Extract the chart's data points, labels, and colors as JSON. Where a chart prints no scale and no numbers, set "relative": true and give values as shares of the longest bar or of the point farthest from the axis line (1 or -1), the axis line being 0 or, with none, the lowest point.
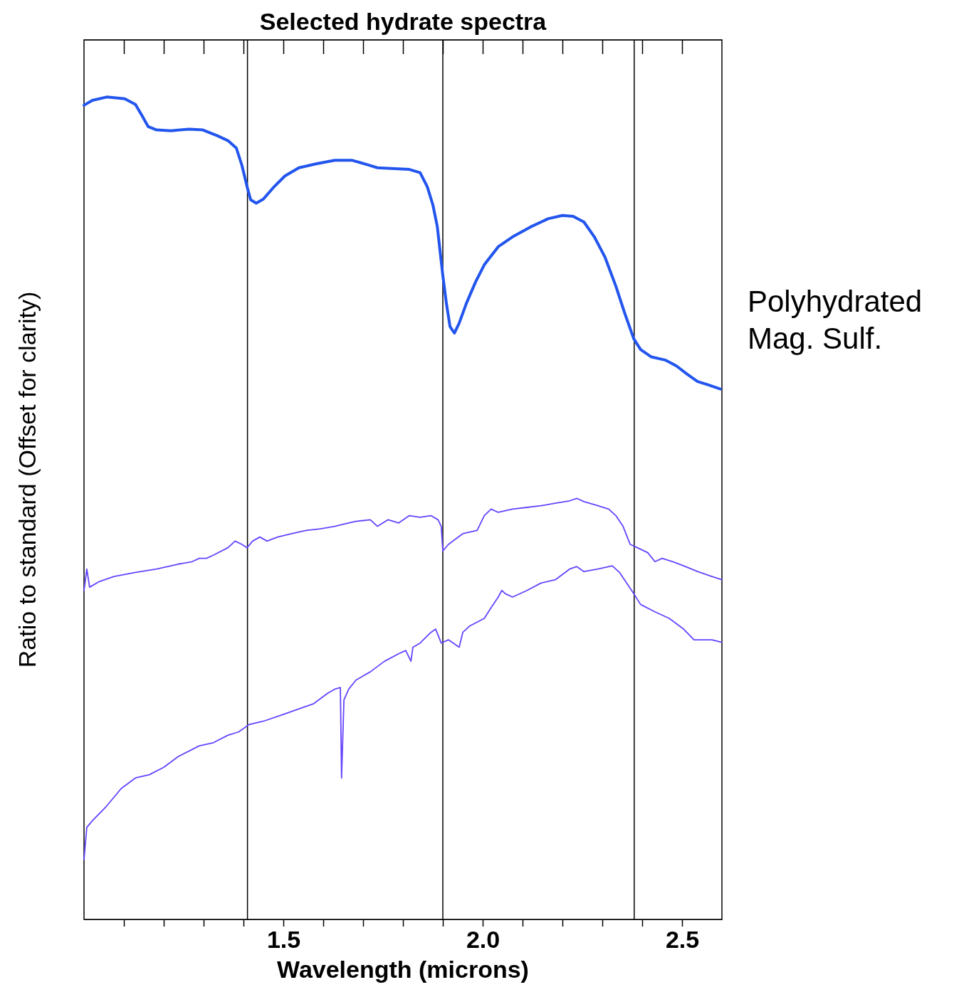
{
  "chart_data": {
    "type": "line",
    "title": "Selected hydrate spectra",
    "xlabel": "Wavelength (microns)",
    "ylabel": "Ratio to standard (Offset for clarity)",
    "relative": true,
    "xlim": [
      1.0,
      2.6
    ],
    "xticks": [
      {
        "value": 1.1,
        "label": null
      },
      {
        "value": 1.2,
        "label": null
      },
      {
        "value": 1.3,
        "label": null
      },
      {
        "value": 1.4,
        "label": null
      },
      {
        "value": 1.5,
        "label": "1.5"
      },
      {
        "value": 1.6,
        "label": null
      },
      {
        "value": 1.7,
        "label": null
      },
      {
        "value": 1.8,
        "label": null
      },
      {
        "value": 1.9,
        "label": null
      },
      {
        "value": 2.0,
        "label": "2.0"
      },
      {
        "value": 2.1,
        "label": null
      },
      {
        "value": 2.2,
        "label": null
      },
      {
        "value": 2.3,
        "label": null
      },
      {
        "value": 2.4,
        "label": null
      },
      {
        "value": 2.5,
        "label": "2.5"
      }
    ],
    "tick_labels": "x",
    "line_style": "solid",
    "annotations": [
      "Polyhydrated Mag. Sulf."
    ],
    "ref_lines": [
      {
        "axis": "x",
        "value": 1.41,
        "label": null,
        "color": "#000000"
      },
      {
        "axis": "x",
        "value": 1.9,
        "label": null,
        "color": "#000000"
      },
      {
        "axis": "x",
        "value": 2.38,
        "label": null,
        "color": "#000000"
      }
    ],
    "series": [
      {
        "color": "#2255ee",
        "x": [
          1.0,
          1.021,
          1.057,
          1.102,
          1.129,
          1.146,
          1.161,
          1.182,
          1.218,
          1.263,
          1.298,
          1.334,
          1.361,
          1.382,
          1.396,
          1.409,
          1.418,
          1.432,
          1.45,
          1.477,
          1.504,
          1.539,
          1.584,
          1.629,
          1.673,
          1.709,
          1.736,
          1.78,
          1.816,
          1.843,
          1.861,
          1.875,
          1.886,
          1.893,
          1.9,
          1.909,
          1.918,
          1.929,
          1.941,
          1.959,
          1.982,
          2.004,
          2.039,
          2.075,
          2.12,
          2.164,
          2.2,
          2.227,
          2.254,
          2.28,
          2.307,
          2.334,
          2.357,
          2.379,
          2.396,
          2.423,
          2.459,
          2.486,
          2.513,
          2.539,
          2.566,
          2.596
        ],
        "values": [
          0.99,
          0.996,
          1.0,
          0.998,
          0.991,
          0.977,
          0.964,
          0.96,
          0.959,
          0.961,
          0.96,
          0.953,
          0.947,
          0.938,
          0.917,
          0.891,
          0.875,
          0.871,
          0.876,
          0.891,
          0.904,
          0.914,
          0.919,
          0.923,
          0.923,
          0.918,
          0.914,
          0.913,
          0.912,
          0.908,
          0.891,
          0.869,
          0.843,
          0.813,
          0.783,
          0.749,
          0.721,
          0.713,
          0.725,
          0.749,
          0.775,
          0.796,
          0.818,
          0.83,
          0.842,
          0.852,
          0.856,
          0.855,
          0.848,
          0.83,
          0.805,
          0.77,
          0.736,
          0.706,
          0.693,
          0.684,
          0.68,
          0.673,
          0.663,
          0.654,
          0.65,
          0.645
        ]
      },
      {
        "color": "#6644ff",
        "x": [
          1.0,
          1.007,
          1.014,
          1.039,
          1.075,
          1.129,
          1.182,
          1.236,
          1.271,
          1.289,
          1.307,
          1.325,
          1.361,
          1.379,
          1.396,
          1.409,
          1.423,
          1.441,
          1.459,
          1.486,
          1.521,
          1.557,
          1.593,
          1.629,
          1.664,
          1.682,
          1.718,
          1.736,
          1.763,
          1.789,
          1.816,
          1.843,
          1.87,
          1.888,
          1.896,
          1.9,
          1.914,
          1.95,
          1.986,
          2.004,
          2.021,
          2.039,
          2.075,
          2.111,
          2.146,
          2.182,
          2.218,
          2.236,
          2.254,
          2.289,
          2.316,
          2.334,
          2.352,
          2.37,
          2.388,
          2.414,
          2.432,
          2.45,
          2.477,
          2.504,
          2.539,
          2.575,
          2.6
        ],
        "values": [
          0.4,
          0.426,
          0.404,
          0.411,
          0.417,
          0.422,
          0.426,
          0.432,
          0.435,
          0.439,
          0.439,
          0.443,
          0.452,
          0.46,
          0.456,
          0.452,
          0.46,
          0.465,
          0.46,
          0.465,
          0.469,
          0.473,
          0.475,
          0.478,
          0.482,
          0.484,
          0.486,
          0.478,
          0.486,
          0.482,
          0.491,
          0.489,
          0.491,
          0.486,
          0.478,
          0.448,
          0.456,
          0.469,
          0.473,
          0.491,
          0.499,
          0.495,
          0.499,
          0.501,
          0.503,
          0.506,
          0.509,
          0.512,
          0.508,
          0.503,
          0.499,
          0.491,
          0.478,
          0.456,
          0.452,
          0.446,
          0.435,
          0.439,
          0.435,
          0.43,
          0.423,
          0.417,
          0.413
        ]
      },
      {
        "color": "#6644ff",
        "x": [
          1.0,
          1.007,
          1.021,
          1.057,
          1.093,
          1.129,
          1.164,
          1.2,
          1.236,
          1.289,
          1.325,
          1.361,
          1.388,
          1.414,
          1.45,
          1.504,
          1.539,
          1.575,
          1.611,
          1.629,
          1.643,
          1.646,
          1.652,
          1.664,
          1.682,
          1.718,
          1.754,
          1.789,
          1.807,
          1.82,
          1.825,
          1.843,
          1.87,
          1.882,
          1.896,
          1.914,
          1.941,
          1.95,
          1.968,
          2.004,
          2.021,
          2.039,
          2.048,
          2.057,
          2.075,
          2.111,
          2.146,
          2.182,
          2.218,
          2.236,
          2.254,
          2.289,
          2.325,
          2.343,
          2.361,
          2.379,
          2.396,
          2.432,
          2.468,
          2.504,
          2.53,
          2.575,
          2.6
        ],
        "values": [
          0.073,
          0.112,
          0.12,
          0.138,
          0.159,
          0.172,
          0.176,
          0.185,
          0.198,
          0.211,
          0.215,
          0.224,
          0.228,
          0.237,
          0.241,
          0.25,
          0.256,
          0.262,
          0.275,
          0.28,
          0.282,
          0.172,
          0.267,
          0.28,
          0.291,
          0.301,
          0.314,
          0.323,
          0.327,
          0.314,
          0.331,
          0.336,
          0.349,
          0.353,
          0.336,
          0.34,
          0.331,
          0.349,
          0.357,
          0.366,
          0.379,
          0.392,
          0.4,
          0.396,
          0.392,
          0.4,
          0.409,
          0.413,
          0.426,
          0.429,
          0.423,
          0.426,
          0.43,
          0.422,
          0.409,
          0.396,
          0.383,
          0.374,
          0.366,
          0.353,
          0.34,
          0.34,
          0.337
        ]
      }
    ]
  }
}
